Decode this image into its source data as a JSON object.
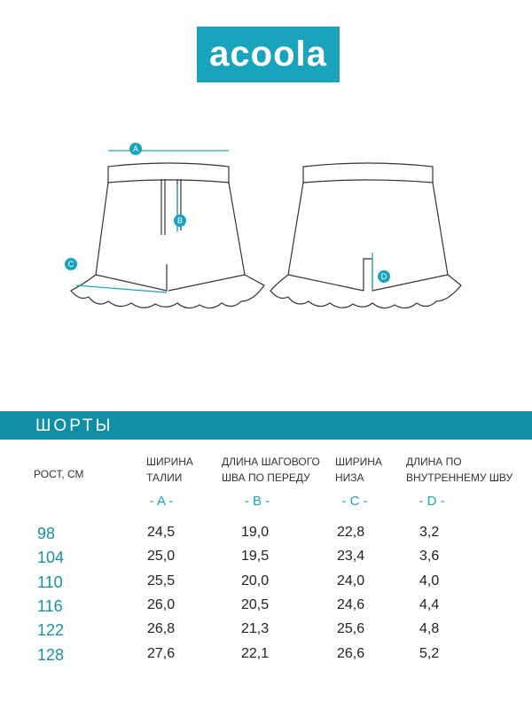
{
  "logo": "acoola",
  "diagram": {
    "markers": [
      "A",
      "B",
      "C",
      "D"
    ]
  },
  "section_title": "ШОРТЫ",
  "table": {
    "header": [
      [
        "РОСТ, СМ"
      ],
      [
        "ШИРИНА",
        "ТАЛИИ"
      ],
      [
        "ДЛИНА ШАГОВОГО",
        "ШВА ПО ПЕРЕДУ"
      ],
      [
        "ШИРИНА",
        "НИЗА"
      ],
      [
        "ДЛИНА ПО",
        "ВНУТРЕННЕМУ ШВУ"
      ]
    ],
    "codes": [
      "- A -",
      "- B -",
      "- C -",
      "- D -"
    ],
    "rows": [
      [
        "98",
        "24,5",
        "19,0",
        "22,8",
        "3,2"
      ],
      [
        "104",
        "25,0",
        "19,5",
        "23,4",
        "3,6"
      ],
      [
        "110",
        "25,5",
        "20,0",
        "24,0",
        "4,0"
      ],
      [
        "116",
        "26,0",
        "20,5",
        "24,6",
        "4,4"
      ],
      [
        "122",
        "26,8",
        "21,3",
        "25,6",
        "4,8"
      ],
      [
        "128",
        "27,6",
        "22,1",
        "26,6",
        "5,2"
      ]
    ]
  }
}
